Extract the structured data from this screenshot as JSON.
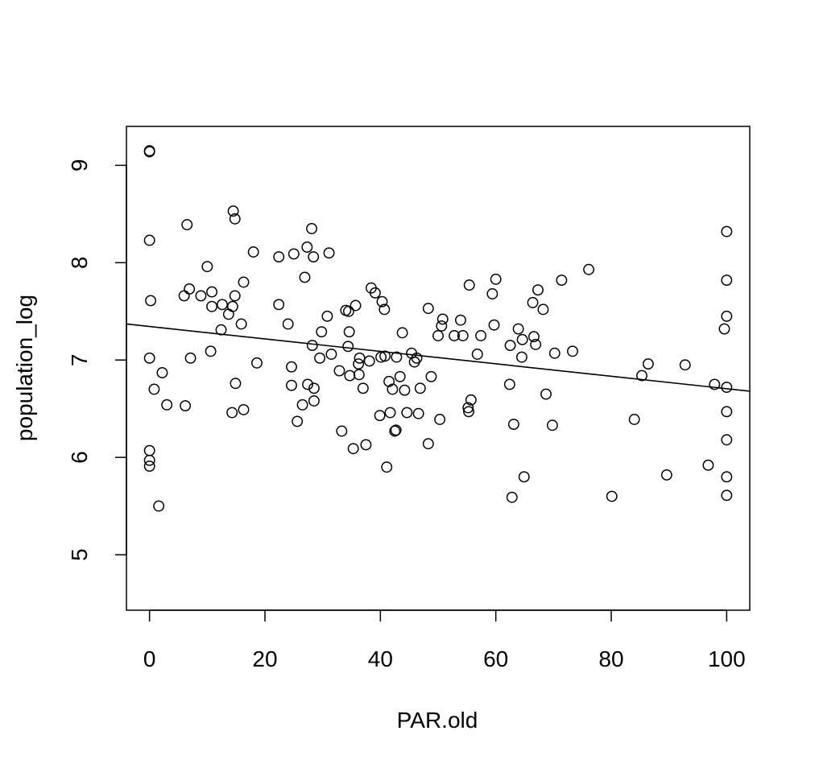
{
  "chart_data": {
    "type": "scatter",
    "title": "",
    "xlabel": "PAR.old",
    "ylabel": "population_log",
    "xlim": [
      -4,
      104
    ],
    "ylim": [
      4.43,
      9.4
    ],
    "xticks": [
      0,
      20,
      40,
      60,
      80,
      100
    ],
    "yticks": [
      5,
      6,
      7,
      8,
      9
    ],
    "grid": false,
    "legend": "none",
    "colors": {
      "points": "#000000",
      "line": "#000000",
      "frame": "#000000",
      "background": "#ffffff"
    },
    "regression_line": {
      "x": [
        -4,
        104
      ],
      "y": [
        7.37,
        6.68
      ]
    },
    "points": [
      {
        "x": 0,
        "y": 9.15
      },
      {
        "x": 0,
        "y": 9.14
      },
      {
        "x": 0,
        "y": 8.23
      },
      {
        "x": 0.2,
        "y": 7.61
      },
      {
        "x": 0,
        "y": 7.02
      },
      {
        "x": 0,
        "y": 6.07
      },
      {
        "x": 0,
        "y": 5.97
      },
      {
        "x": 0,
        "y": 5.91
      },
      {
        "x": 0.8,
        "y": 6.7
      },
      {
        "x": 1.6,
        "y": 5.5
      },
      {
        "x": 2.2,
        "y": 6.87
      },
      {
        "x": 3,
        "y": 6.54
      },
      {
        "x": 6,
        "y": 7.66
      },
      {
        "x": 6.2,
        "y": 6.53
      },
      {
        "x": 6.5,
        "y": 8.39
      },
      {
        "x": 6.9,
        "y": 7.73
      },
      {
        "x": 7.1,
        "y": 7.02
      },
      {
        "x": 8.9,
        "y": 7.66
      },
      {
        "x": 10,
        "y": 7.96
      },
      {
        "x": 10.6,
        "y": 7.09
      },
      {
        "x": 10.8,
        "y": 7.7
      },
      {
        "x": 10.8,
        "y": 7.55
      },
      {
        "x": 12.4,
        "y": 7.31
      },
      {
        "x": 12.6,
        "y": 7.57
      },
      {
        "x": 13.7,
        "y": 7.47
      },
      {
        "x": 14.3,
        "y": 6.46
      },
      {
        "x": 14.4,
        "y": 7.55
      },
      {
        "x": 14.5,
        "y": 8.53
      },
      {
        "x": 14.8,
        "y": 8.45
      },
      {
        "x": 14.8,
        "y": 7.66
      },
      {
        "x": 14.9,
        "y": 6.76
      },
      {
        "x": 15.9,
        "y": 7.37
      },
      {
        "x": 16.3,
        "y": 7.8
      },
      {
        "x": 16.3,
        "y": 6.49
      },
      {
        "x": 18,
        "y": 8.11
      },
      {
        "x": 18.6,
        "y": 6.97
      },
      {
        "x": 22.4,
        "y": 8.06
      },
      {
        "x": 22.4,
        "y": 7.57
      },
      {
        "x": 24,
        "y": 7.37
      },
      {
        "x": 24.6,
        "y": 6.93
      },
      {
        "x": 24.6,
        "y": 6.74
      },
      {
        "x": 25,
        "y": 8.09
      },
      {
        "x": 25.6,
        "y": 6.37
      },
      {
        "x": 26.5,
        "y": 6.54
      },
      {
        "x": 26.9,
        "y": 7.85
      },
      {
        "x": 27.3,
        "y": 8.16
      },
      {
        "x": 27.4,
        "y": 6.75
      },
      {
        "x": 28.1,
        "y": 8.35
      },
      {
        "x": 28.2,
        "y": 7.15
      },
      {
        "x": 28.4,
        "y": 8.06
      },
      {
        "x": 28.5,
        "y": 6.58
      },
      {
        "x": 28.5,
        "y": 6.71
      },
      {
        "x": 29.5,
        "y": 7.02
      },
      {
        "x": 29.8,
        "y": 7.29
      },
      {
        "x": 30.8,
        "y": 7.45
      },
      {
        "x": 31.1,
        "y": 8.1
      },
      {
        "x": 31.5,
        "y": 7.06
      },
      {
        "x": 32.9,
        "y": 6.89
      },
      {
        "x": 33.3,
        "y": 6.27
      },
      {
        "x": 34,
        "y": 7.51
      },
      {
        "x": 34.4,
        "y": 7.14
      },
      {
        "x": 34.5,
        "y": 7.5
      },
      {
        "x": 34.6,
        "y": 7.29
      },
      {
        "x": 34.7,
        "y": 6.84
      },
      {
        "x": 35.3,
        "y": 6.09
      },
      {
        "x": 35.7,
        "y": 7.56
      },
      {
        "x": 36.2,
        "y": 6.96
      },
      {
        "x": 36.3,
        "y": 6.85
      },
      {
        "x": 36.4,
        "y": 7.02
      },
      {
        "x": 37,
        "y": 6.71
      },
      {
        "x": 37.5,
        "y": 6.13
      },
      {
        "x": 38.1,
        "y": 6.99
      },
      {
        "x": 38.4,
        "y": 7.74
      },
      {
        "x": 39.1,
        "y": 7.69
      },
      {
        "x": 39.9,
        "y": 6.43
      },
      {
        "x": 40.1,
        "y": 7.03
      },
      {
        "x": 40.3,
        "y": 7.6
      },
      {
        "x": 40.7,
        "y": 7.52
      },
      {
        "x": 40.8,
        "y": 7.04
      },
      {
        "x": 41.1,
        "y": 5.9
      },
      {
        "x": 41.5,
        "y": 6.78
      },
      {
        "x": 41.7,
        "y": 6.46
      },
      {
        "x": 42.1,
        "y": 6.7
      },
      {
        "x": 42.5,
        "y": 6.27
      },
      {
        "x": 42.7,
        "y": 6.28
      },
      {
        "x": 42.8,
        "y": 7.03
      },
      {
        "x": 43.4,
        "y": 6.83
      },
      {
        "x": 43.8,
        "y": 7.28
      },
      {
        "x": 44.2,
        "y": 6.69
      },
      {
        "x": 44.6,
        "y": 6.46
      },
      {
        "x": 45.4,
        "y": 7.07
      },
      {
        "x": 45.9,
        "y": 6.98
      },
      {
        "x": 46.3,
        "y": 7.02
      },
      {
        "x": 46.6,
        "y": 6.45
      },
      {
        "x": 46.9,
        "y": 6.71
      },
      {
        "x": 48.3,
        "y": 7.53
      },
      {
        "x": 48.3,
        "y": 6.14
      },
      {
        "x": 48.8,
        "y": 6.83
      },
      {
        "x": 50,
        "y": 7.25
      },
      {
        "x": 50.3,
        "y": 6.39
      },
      {
        "x": 50.6,
        "y": 7.35
      },
      {
        "x": 50.8,
        "y": 7.42
      },
      {
        "x": 52.8,
        "y": 7.25
      },
      {
        "x": 53.9,
        "y": 7.41
      },
      {
        "x": 54.3,
        "y": 7.25
      },
      {
        "x": 55.2,
        "y": 6.51
      },
      {
        "x": 55.3,
        "y": 6.47
      },
      {
        "x": 55.4,
        "y": 7.77
      },
      {
        "x": 55.7,
        "y": 6.59
      },
      {
        "x": 56.8,
        "y": 7.06
      },
      {
        "x": 57.4,
        "y": 7.25
      },
      {
        "x": 59.4,
        "y": 7.68
      },
      {
        "x": 59.7,
        "y": 7.36
      },
      {
        "x": 60,
        "y": 7.83
      },
      {
        "x": 62.4,
        "y": 6.75
      },
      {
        "x": 62.5,
        "y": 7.15
      },
      {
        "x": 62.8,
        "y": 5.59
      },
      {
        "x": 63.1,
        "y": 6.34
      },
      {
        "x": 63.9,
        "y": 7.32
      },
      {
        "x": 64.5,
        "y": 7.03
      },
      {
        "x": 64.6,
        "y": 7.21
      },
      {
        "x": 64.9,
        "y": 5.8
      },
      {
        "x": 66.4,
        "y": 7.59
      },
      {
        "x": 66.6,
        "y": 7.24
      },
      {
        "x": 66.9,
        "y": 7.16
      },
      {
        "x": 67.3,
        "y": 7.72
      },
      {
        "x": 68.2,
        "y": 7.52
      },
      {
        "x": 68.7,
        "y": 6.65
      },
      {
        "x": 69.8,
        "y": 6.33
      },
      {
        "x": 70.2,
        "y": 7.07
      },
      {
        "x": 71.4,
        "y": 7.82
      },
      {
        "x": 73.3,
        "y": 7.09
      },
      {
        "x": 76.1,
        "y": 7.93
      },
      {
        "x": 80.1,
        "y": 5.6
      },
      {
        "x": 84,
        "y": 6.39
      },
      {
        "x": 85.3,
        "y": 6.84
      },
      {
        "x": 86.4,
        "y": 6.96
      },
      {
        "x": 89.6,
        "y": 5.82
      },
      {
        "x": 92.8,
        "y": 6.95
      },
      {
        "x": 96.8,
        "y": 5.92
      },
      {
        "x": 97.9,
        "y": 6.75
      },
      {
        "x": 99.6,
        "y": 7.32
      },
      {
        "x": 100,
        "y": 8.32
      },
      {
        "x": 100,
        "y": 7.82
      },
      {
        "x": 100,
        "y": 7.45
      },
      {
        "x": 100,
        "y": 6.72
      },
      {
        "x": 100,
        "y": 6.47
      },
      {
        "x": 100,
        "y": 6.18
      },
      {
        "x": 100,
        "y": 5.8
      },
      {
        "x": 100,
        "y": 5.61
      }
    ]
  }
}
